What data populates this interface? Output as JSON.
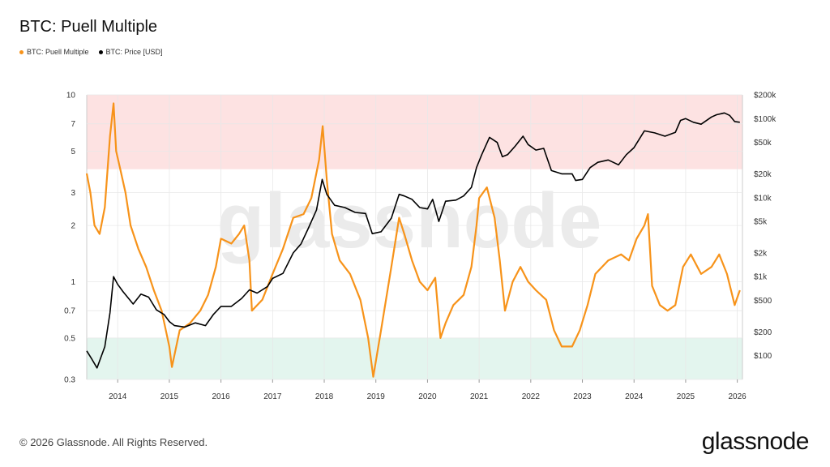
{
  "chart_data": {
    "type": "line",
    "title": "BTC: Puell Multiple",
    "legend_position": "top-left",
    "series": [
      {
        "name": "BTC: Puell Multiple",
        "color": "#f7931a",
        "axis": "left",
        "points": [
          [
            2013.4,
            3.8
          ],
          [
            2013.47,
            3.0
          ],
          [
            2013.55,
            2.0
          ],
          [
            2013.65,
            1.8
          ],
          [
            2013.75,
            2.5
          ],
          [
            2013.85,
            6.0
          ],
          [
            2013.92,
            9.0
          ],
          [
            2013.97,
            5.0
          ],
          [
            2014.05,
            4.0
          ],
          [
            2014.15,
            3.0
          ],
          [
            2014.25,
            2.0
          ],
          [
            2014.4,
            1.5
          ],
          [
            2014.55,
            1.2
          ],
          [
            2014.7,
            0.9
          ],
          [
            2014.85,
            0.7
          ],
          [
            2015.0,
            0.45
          ],
          [
            2015.05,
            0.35
          ],
          [
            2015.2,
            0.55
          ],
          [
            2015.4,
            0.6
          ],
          [
            2015.6,
            0.7
          ],
          [
            2015.75,
            0.85
          ],
          [
            2015.9,
            1.2
          ],
          [
            2016.0,
            1.7
          ],
          [
            2016.2,
            1.6
          ],
          [
            2016.35,
            1.8
          ],
          [
            2016.45,
            2.0
          ],
          [
            2016.55,
            1.3
          ],
          [
            2016.6,
            0.7
          ],
          [
            2016.8,
            0.8
          ],
          [
            2017.0,
            1.1
          ],
          [
            2017.2,
            1.5
          ],
          [
            2017.4,
            2.2
          ],
          [
            2017.6,
            2.3
          ],
          [
            2017.75,
            2.8
          ],
          [
            2017.9,
            4.5
          ],
          [
            2017.97,
            6.8
          ],
          [
            2018.05,
            3.5
          ],
          [
            2018.15,
            1.8
          ],
          [
            2018.3,
            1.3
          ],
          [
            2018.5,
            1.1
          ],
          [
            2018.7,
            0.8
          ],
          [
            2018.85,
            0.5
          ],
          [
            2018.95,
            0.31
          ],
          [
            2019.1,
            0.55
          ],
          [
            2019.3,
            1.2
          ],
          [
            2019.45,
            2.2
          ],
          [
            2019.55,
            1.8
          ],
          [
            2019.7,
            1.3
          ],
          [
            2019.85,
            1.0
          ],
          [
            2020.0,
            0.9
          ],
          [
            2020.15,
            1.05
          ],
          [
            2020.25,
            0.5
          ],
          [
            2020.35,
            0.6
          ],
          [
            2020.5,
            0.75
          ],
          [
            2020.7,
            0.85
          ],
          [
            2020.85,
            1.2
          ],
          [
            2020.95,
            2.0
          ],
          [
            2021.0,
            2.8
          ],
          [
            2021.15,
            3.2
          ],
          [
            2021.3,
            2.2
          ],
          [
            2021.4,
            1.3
          ],
          [
            2021.5,
            0.7
          ],
          [
            2021.65,
            1.0
          ],
          [
            2021.8,
            1.2
          ],
          [
            2021.95,
            1.0
          ],
          [
            2022.1,
            0.9
          ],
          [
            2022.3,
            0.8
          ],
          [
            2022.45,
            0.55
          ],
          [
            2022.6,
            0.45
          ],
          [
            2022.8,
            0.45
          ],
          [
            2022.95,
            0.55
          ],
          [
            2023.1,
            0.75
          ],
          [
            2023.25,
            1.1
          ],
          [
            2023.5,
            1.3
          ],
          [
            2023.75,
            1.4
          ],
          [
            2023.9,
            1.3
          ],
          [
            2024.05,
            1.7
          ],
          [
            2024.2,
            2.0
          ],
          [
            2024.27,
            2.3
          ],
          [
            2024.35,
            0.95
          ],
          [
            2024.5,
            0.75
          ],
          [
            2024.65,
            0.7
          ],
          [
            2024.8,
            0.75
          ],
          [
            2024.95,
            1.2
          ],
          [
            2025.1,
            1.4
          ],
          [
            2025.3,
            1.1
          ],
          [
            2025.5,
            1.2
          ],
          [
            2025.65,
            1.4
          ],
          [
            2025.8,
            1.1
          ],
          [
            2025.95,
            0.75
          ],
          [
            2026.05,
            0.9
          ]
        ]
      },
      {
        "name": "BTC: Price [USD]",
        "color": "#000000",
        "axis": "right",
        "points": [
          [
            2013.4,
            115
          ],
          [
            2013.5,
            90
          ],
          [
            2013.6,
            70
          ],
          [
            2013.75,
            130
          ],
          [
            2013.85,
            350
          ],
          [
            2013.92,
            1000
          ],
          [
            2014.0,
            800
          ],
          [
            2014.1,
            650
          ],
          [
            2014.3,
            450
          ],
          [
            2014.45,
            600
          ],
          [
            2014.6,
            550
          ],
          [
            2014.75,
            380
          ],
          [
            2014.9,
            330
          ],
          [
            2015.0,
            270
          ],
          [
            2015.1,
            240
          ],
          [
            2015.3,
            230
          ],
          [
            2015.5,
            260
          ],
          [
            2015.7,
            240
          ],
          [
            2015.85,
            330
          ],
          [
            2016.0,
            420
          ],
          [
            2016.2,
            420
          ],
          [
            2016.4,
            530
          ],
          [
            2016.55,
            680
          ],
          [
            2016.7,
            620
          ],
          [
            2016.9,
            750
          ],
          [
            2017.0,
            950
          ],
          [
            2017.2,
            1100
          ],
          [
            2017.4,
            2000
          ],
          [
            2017.55,
            2600
          ],
          [
            2017.7,
            4200
          ],
          [
            2017.85,
            7000
          ],
          [
            2017.96,
            17000
          ],
          [
            2018.05,
            11000
          ],
          [
            2018.2,
            8000
          ],
          [
            2018.4,
            7500
          ],
          [
            2018.6,
            6500
          ],
          [
            2018.8,
            6300
          ],
          [
            2018.93,
            3500
          ],
          [
            2019.1,
            3700
          ],
          [
            2019.3,
            5500
          ],
          [
            2019.45,
            11000
          ],
          [
            2019.55,
            10500
          ],
          [
            2019.7,
            9500
          ],
          [
            2019.85,
            7500
          ],
          [
            2020.0,
            7200
          ],
          [
            2020.1,
            9500
          ],
          [
            2020.22,
            5000
          ],
          [
            2020.35,
            9000
          ],
          [
            2020.55,
            9300
          ],
          [
            2020.7,
            10500
          ],
          [
            2020.85,
            13500
          ],
          [
            2020.95,
            24000
          ],
          [
            2021.05,
            35000
          ],
          [
            2021.2,
            58000
          ],
          [
            2021.35,
            50000
          ],
          [
            2021.45,
            33000
          ],
          [
            2021.55,
            35000
          ],
          [
            2021.7,
            45000
          ],
          [
            2021.85,
            60000
          ],
          [
            2021.95,
            47000
          ],
          [
            2022.1,
            40000
          ],
          [
            2022.25,
            42000
          ],
          [
            2022.4,
            22000
          ],
          [
            2022.6,
            20000
          ],
          [
            2022.8,
            20000
          ],
          [
            2022.87,
            16500
          ],
          [
            2023.0,
            17000
          ],
          [
            2023.15,
            24000
          ],
          [
            2023.3,
            28000
          ],
          [
            2023.5,
            30000
          ],
          [
            2023.7,
            26000
          ],
          [
            2023.85,
            35000
          ],
          [
            2024.0,
            43000
          ],
          [
            2024.2,
            70000
          ],
          [
            2024.4,
            66000
          ],
          [
            2024.6,
            60000
          ],
          [
            2024.8,
            67000
          ],
          [
            2024.9,
            95000
          ],
          [
            2025.0,
            100000
          ],
          [
            2025.15,
            90000
          ],
          [
            2025.3,
            85000
          ],
          [
            2025.5,
            105000
          ],
          [
            2025.6,
            112000
          ],
          [
            2025.75,
            118000
          ],
          [
            2025.85,
            110000
          ],
          [
            2025.95,
            92000
          ],
          [
            2026.05,
            90000
          ]
        ]
      }
    ],
    "x_ticks": [
      "2014",
      "2015",
      "2016",
      "2017",
      "2018",
      "2019",
      "2020",
      "2021",
      "2022",
      "2023",
      "2024",
      "2025",
      "2026"
    ],
    "xlim": [
      2013.4,
      2026.1
    ],
    "left_axis": {
      "scale": "log",
      "ylim": [
        0.3,
        10
      ],
      "ticks": [
        {
          "value": 10,
          "label": "10"
        },
        {
          "value": 7,
          "label": "7"
        },
        {
          "value": 5,
          "label": "5"
        },
        {
          "value": 3,
          "label": "3"
        },
        {
          "value": 2,
          "label": "2"
        },
        {
          "value": 1,
          "label": "1"
        },
        {
          "value": 0.7,
          "label": "0.7"
        },
        {
          "value": 0.5,
          "label": "0.5"
        },
        {
          "value": 0.3,
          "label": "0.3"
        }
      ]
    },
    "right_axis": {
      "scale": "log",
      "ylim": [
        50,
        200000
      ],
      "ticks": [
        {
          "value": 200000,
          "label": "$200k"
        },
        {
          "value": 100000,
          "label": "$100k"
        },
        {
          "value": 50000,
          "label": "$50k"
        },
        {
          "value": 20000,
          "label": "$20k"
        },
        {
          "value": 10000,
          "label": "$10k"
        },
        {
          "value": 5000,
          "label": "$5k"
        },
        {
          "value": 2000,
          "label": "$2k"
        },
        {
          "value": 1000,
          "label": "$1k"
        },
        {
          "value": 500,
          "label": "$500"
        },
        {
          "value": 200,
          "label": "$200"
        },
        {
          "value": 100,
          "label": "$100"
        }
      ]
    },
    "bands": [
      {
        "from": 4.0,
        "to": 10,
        "color": "#fde2e2",
        "axis": "left"
      },
      {
        "from": 0.3,
        "to": 0.5,
        "color": "#e3f5ee",
        "axis": "left"
      }
    ],
    "grid": true,
    "watermark": "glassnode"
  },
  "footer": {
    "copyright": "© 2026 Glassnode. All Rights Reserved.",
    "logo": "glassnode"
  }
}
